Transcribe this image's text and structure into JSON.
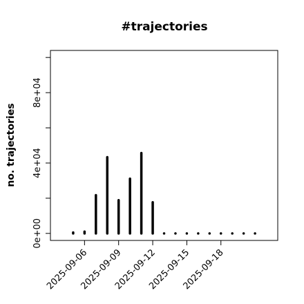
{
  "chart_data": {
    "type": "histogram-lines",
    "title": "#trajectories",
    "y_label": "no. trajectories",
    "x": [
      "2025-09-05",
      "2025-09-06",
      "2025-09-07",
      "2025-09-08",
      "2025-09-09",
      "2025-09-10",
      "2025-09-11",
      "2025-09-12",
      "2025-09-13",
      "2025-09-14",
      "2025-09-15",
      "2025-09-16",
      "2025-09-17",
      "2025-09-18",
      "2025-09-19",
      "2025-09-20",
      "2025-09-21"
    ],
    "values": [
      500,
      1000,
      21700,
      43300,
      18900,
      31100,
      45700,
      17700,
      0,
      0,
      0,
      0,
      0,
      0,
      0,
      0,
      0
    ],
    "color": "#000000",
    "xlim": [
      "2025-09-03",
      "2025-09-23"
    ],
    "xticks": [
      "2025-09-06",
      "2025-09-09",
      "2025-09-12",
      "2025-09-15",
      "2025-09-18"
    ],
    "ylim": [
      -4000,
      104000
    ],
    "yticks": [
      {
        "value": 0,
        "label": "0e+00"
      },
      {
        "value": 40000,
        "label": "4e+04"
      },
      {
        "value": 80000,
        "label": "8e+04"
      }
    ],
    "yminor_ticks": [
      20000,
      60000,
      100000
    ]
  }
}
